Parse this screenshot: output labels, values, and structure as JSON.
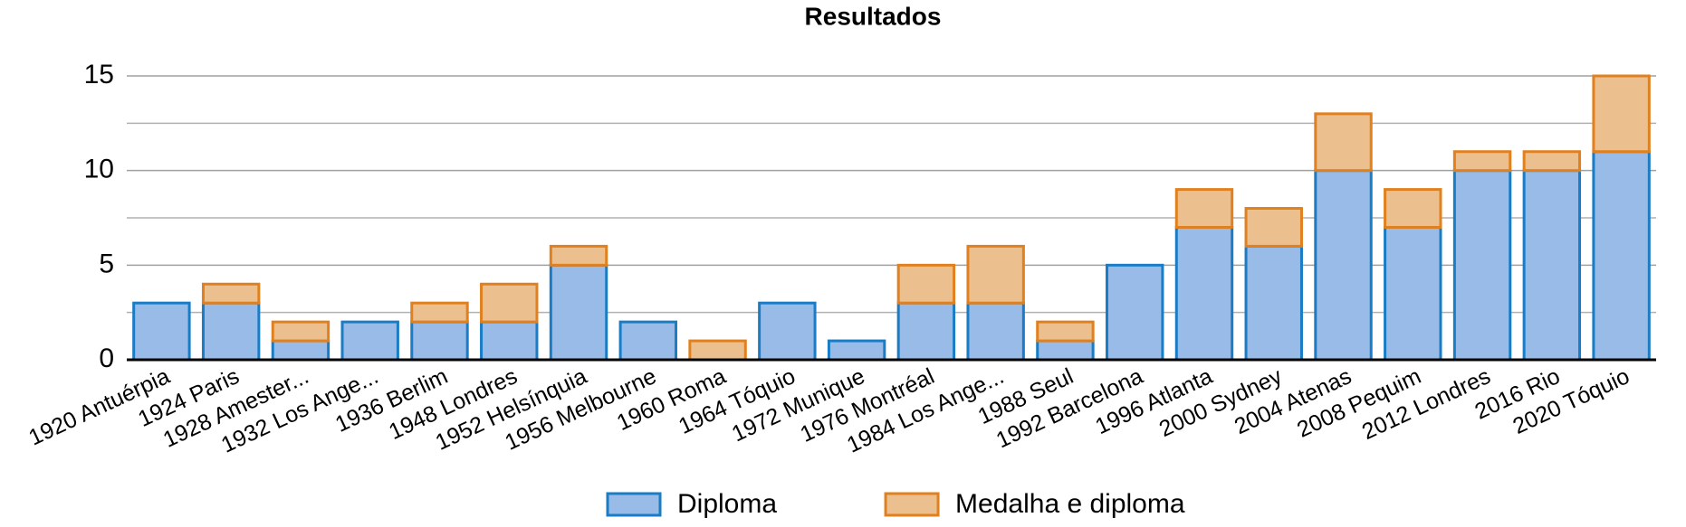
{
  "chart_data": {
    "type": "stacked-bar",
    "title": "Resultados",
    "categories": [
      "1920 Antuérpia",
      "1924 Paris",
      "1928 Amester...",
      "1932 Los Ange...",
      "1936 Berlim",
      "1948 Londres",
      "1952 Helsínquia",
      "1956 Melbourne",
      "1960 Roma",
      "1964 Tóquio",
      "1972 Munique",
      "1976 Montréal",
      "1984 Los Ange...",
      "1988 Seul",
      "1992 Barcelona",
      "1996 Atlanta",
      "2000 Sydney",
      "2004 Atenas",
      "2008 Pequim",
      "2012 Londres",
      "2016 Rio",
      "2020 Tóquio"
    ],
    "series": [
      {
        "name": "Diploma",
        "color": "#99bbe8",
        "stroke": "#1a7cc4",
        "values": [
          3,
          3,
          1,
          2,
          2,
          2,
          5,
          2,
          0,
          3,
          1,
          3,
          3,
          1,
          5,
          7,
          6,
          10,
          7,
          10,
          10,
          11
        ]
      },
      {
        "name": "Medalha e diploma",
        "color": "#ecc08e",
        "stroke": "#e0801e",
        "values": [
          0,
          1,
          1,
          0,
          1,
          2,
          1,
          0,
          1,
          0,
          0,
          2,
          3,
          1,
          0,
          2,
          2,
          3,
          2,
          1,
          1,
          4
        ]
      }
    ],
    "ylim": [
      0,
      15
    ],
    "yticks": [
      0,
      5,
      10,
      15
    ],
    "minor_yticks": [
      2.5,
      7.5,
      12.5
    ],
    "grid": true,
    "legend": "bottom"
  }
}
